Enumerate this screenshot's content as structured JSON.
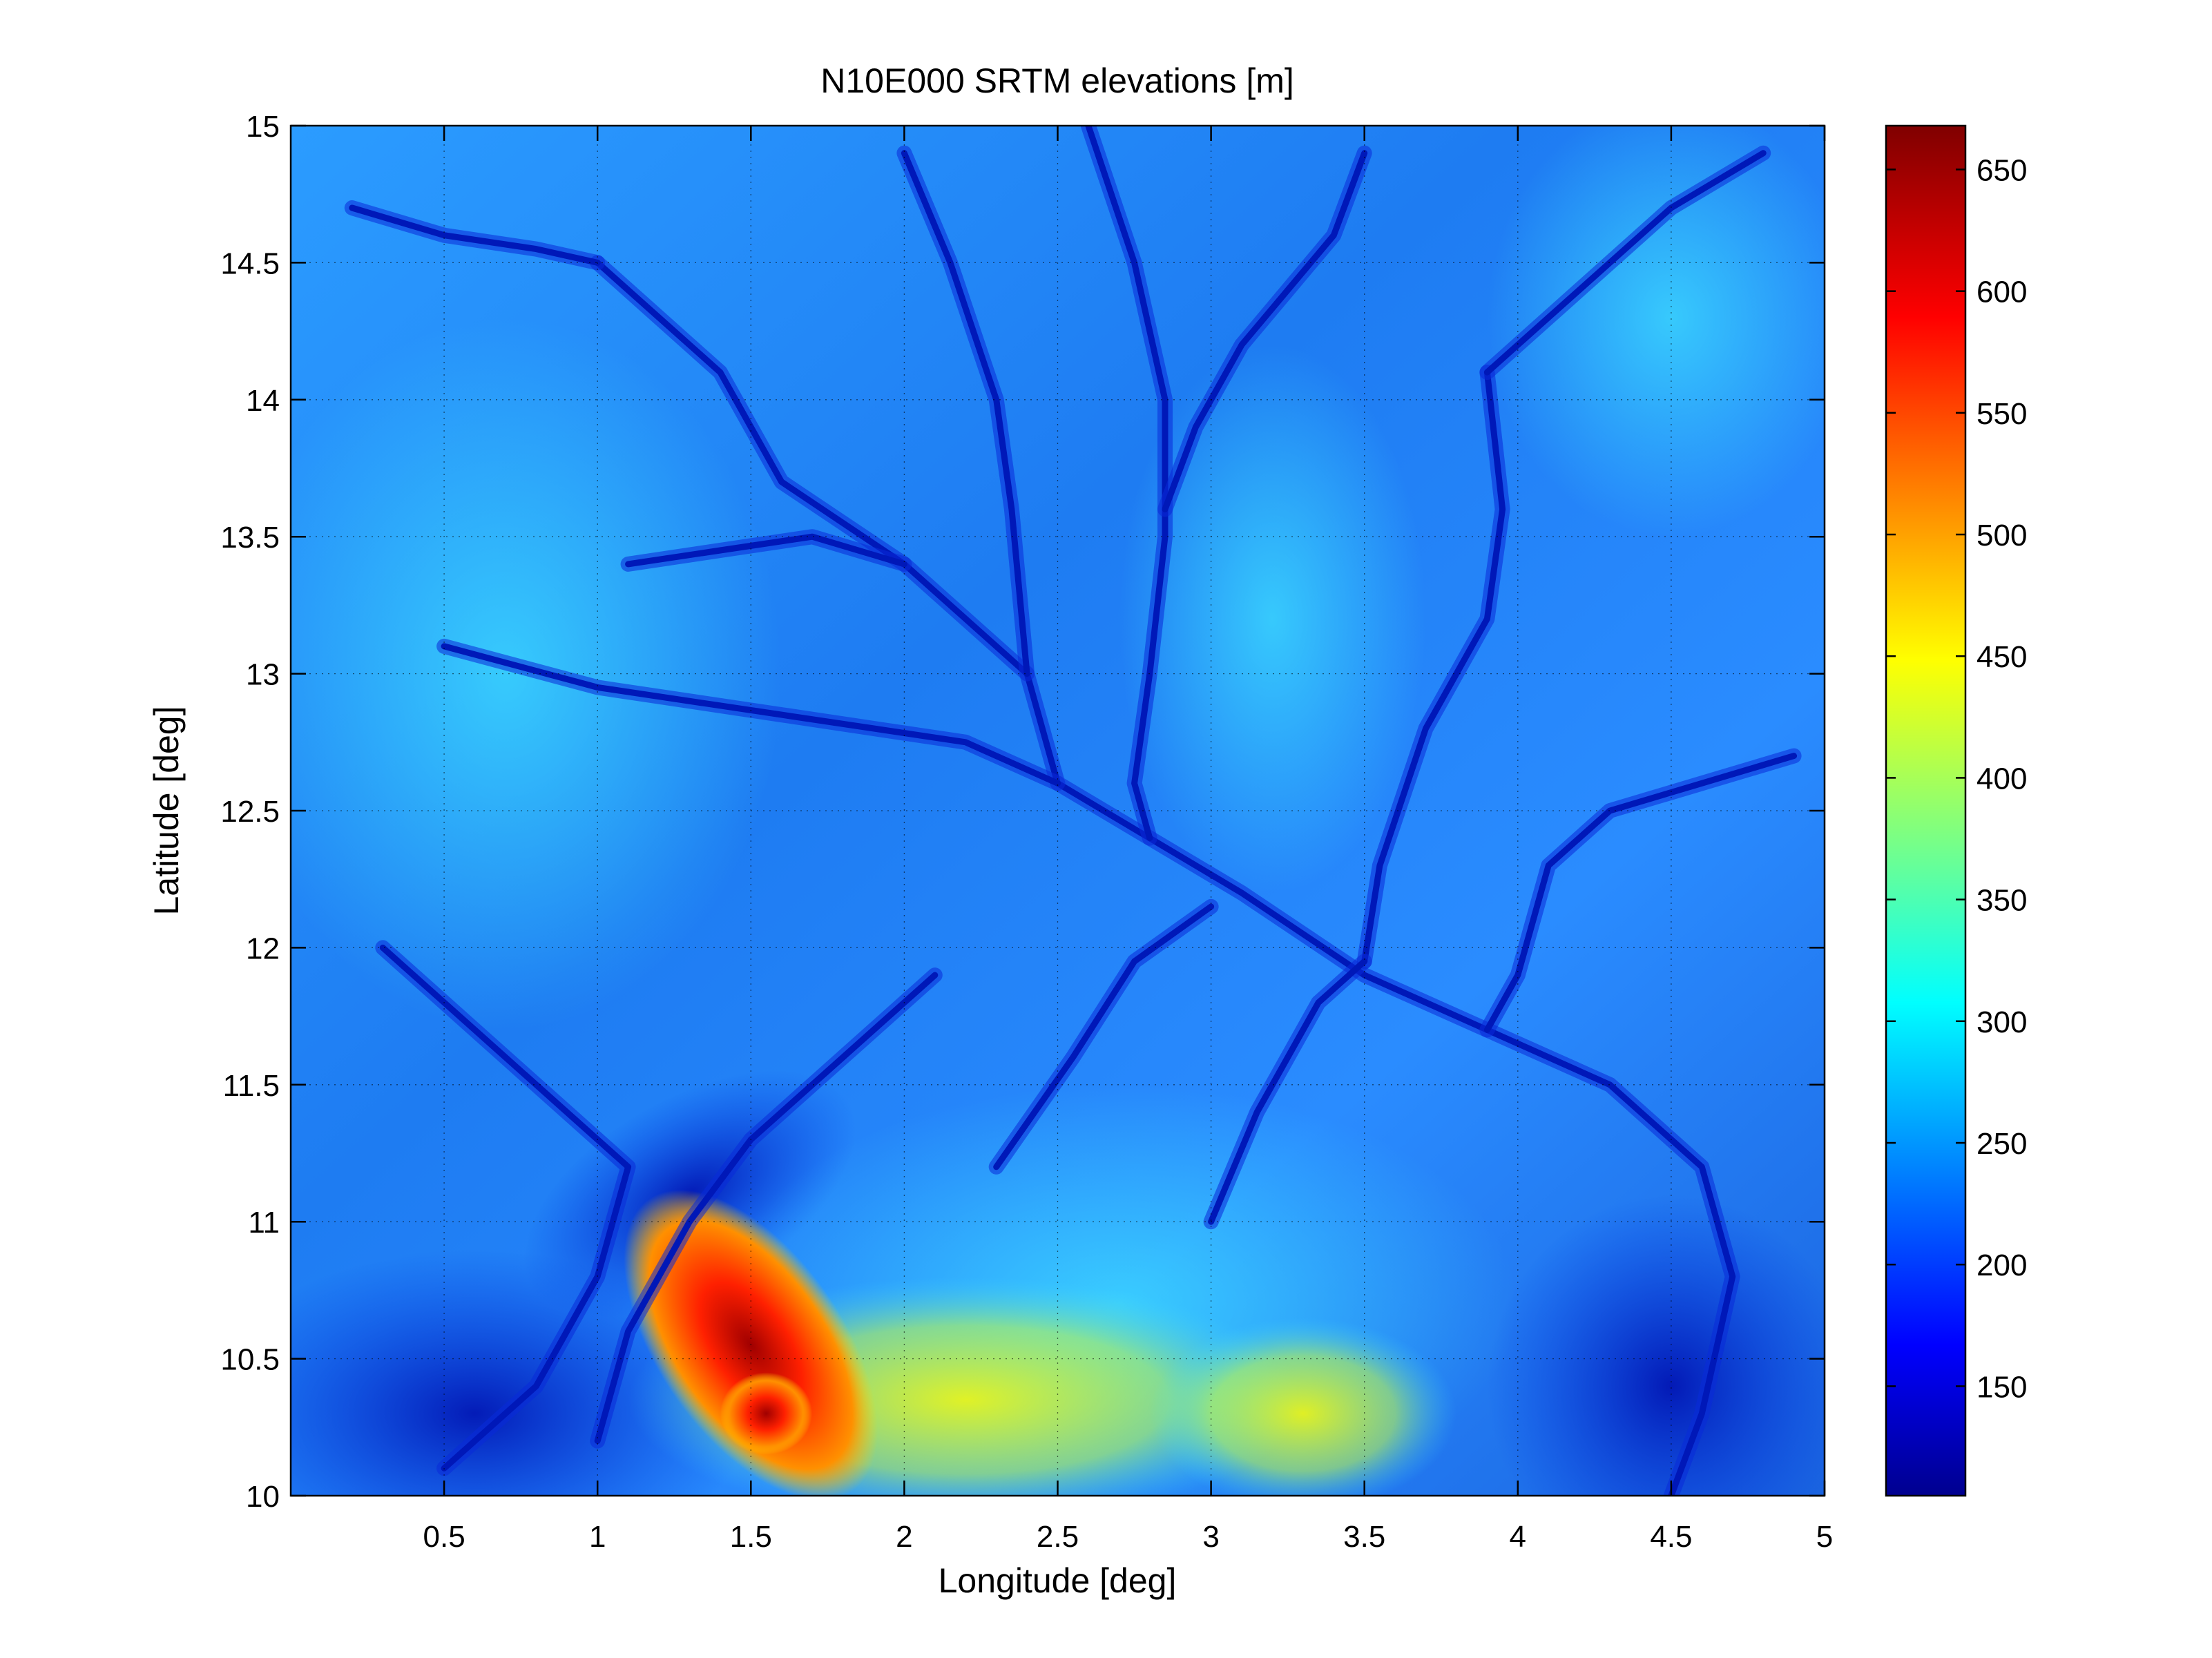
{
  "chart_data": {
    "type": "heatmap",
    "title": "N10E000 SRTM elevations [m]",
    "xlabel": "Longitude [deg]",
    "ylabel": "Latitude [deg]",
    "xlim": [
      0,
      5
    ],
    "ylim": [
      10,
      15
    ],
    "x_ticks": [
      "0.5",
      "1",
      "1.5",
      "2",
      "2.5",
      "3",
      "3.5",
      "4",
      "4.5",
      "5"
    ],
    "y_ticks": [
      "10",
      "10.5",
      "11",
      "11.5",
      "12",
      "12.5",
      "13",
      "13.5",
      "14",
      "14.5",
      "15"
    ],
    "grid": true,
    "colormap": "jet",
    "colorbar": {
      "position": "right",
      "range": [
        105,
        668
      ],
      "ticks": [
        "150",
        "200",
        "250",
        "300",
        "350",
        "400",
        "450",
        "500",
        "550",
        "600",
        "650"
      ]
    },
    "features": [
      {
        "type": "river",
        "points": [
          [
            1.0,
            14.5
          ],
          [
            1.4,
            14.1
          ],
          [
            1.6,
            13.7
          ],
          [
            2.0,
            13.4
          ],
          [
            2.4,
            13.0
          ],
          [
            2.5,
            12.6
          ],
          [
            2.8,
            12.4
          ],
          [
            3.1,
            12.2
          ],
          [
            3.5,
            11.9
          ],
          [
            3.9,
            11.7
          ],
          [
            4.3,
            11.5
          ],
          [
            4.6,
            11.2
          ],
          [
            4.7,
            10.8
          ],
          [
            4.6,
            10.3
          ],
          [
            4.5,
            10.0
          ]
        ]
      },
      {
        "type": "river",
        "points": [
          [
            2.6,
            15.0
          ],
          [
            2.75,
            14.5
          ],
          [
            2.85,
            14.0
          ],
          [
            2.85,
            13.5
          ],
          [
            2.8,
            13.0
          ],
          [
            2.75,
            12.6
          ],
          [
            2.8,
            12.4
          ]
        ]
      },
      {
        "type": "river",
        "points": [
          [
            3.5,
            14.9
          ],
          [
            3.4,
            14.6
          ],
          [
            3.1,
            14.2
          ],
          [
            2.95,
            13.9
          ],
          [
            2.85,
            13.6
          ]
        ]
      },
      {
        "type": "river",
        "points": [
          [
            4.9,
            12.7
          ],
          [
            4.6,
            12.6
          ],
          [
            4.3,
            12.5
          ],
          [
            4.1,
            12.3
          ],
          [
            4.0,
            11.9
          ],
          [
            3.9,
            11.7
          ]
        ]
      },
      {
        "type": "river",
        "points": [
          [
            3.9,
            14.1
          ],
          [
            3.95,
            13.6
          ],
          [
            3.9,
            13.2
          ],
          [
            3.7,
            12.8
          ],
          [
            3.55,
            12.3
          ],
          [
            3.5,
            11.95
          ]
        ]
      },
      {
        "type": "river",
        "points": [
          [
            0.2,
            14.7
          ],
          [
            0.5,
            14.6
          ],
          [
            0.8,
            14.55
          ],
          [
            1.0,
            14.5
          ]
        ]
      },
      {
        "type": "river",
        "points": [
          [
            0.3,
            12.0
          ],
          [
            0.6,
            11.7
          ],
          [
            0.9,
            11.4
          ],
          [
            1.1,
            11.2
          ],
          [
            1.0,
            10.8
          ],
          [
            0.8,
            10.4
          ],
          [
            0.5,
            10.1
          ]
        ]
      },
      {
        "type": "river",
        "points": [
          [
            2.1,
            11.9
          ],
          [
            1.8,
            11.6
          ],
          [
            1.5,
            11.3
          ],
          [
            1.3,
            11.0
          ],
          [
            1.1,
            10.6
          ],
          [
            1.0,
            10.2
          ]
        ]
      },
      {
        "type": "river",
        "points": [
          [
            4.8,
            14.9
          ],
          [
            4.5,
            14.7
          ],
          [
            4.2,
            14.4
          ],
          [
            3.9,
            14.1
          ]
        ]
      },
      {
        "type": "river",
        "points": [
          [
            1.1,
            13.4
          ],
          [
            1.4,
            13.45
          ],
          [
            1.7,
            13.5
          ],
          [
            2.0,
            13.4
          ]
        ]
      },
      {
        "type": "river",
        "points": [
          [
            0.5,
            13.1
          ],
          [
            1.0,
            12.95
          ],
          [
            1.6,
            12.85
          ],
          [
            2.2,
            12.75
          ],
          [
            2.5,
            12.6
          ]
        ]
      },
      {
        "type": "river",
        "points": [
          [
            2.3,
            11.2
          ],
          [
            2.55,
            11.6
          ],
          [
            2.75,
            11.95
          ],
          [
            3.0,
            12.15
          ]
        ]
      },
      {
        "type": "river",
        "points": [
          [
            2.0,
            14.9
          ],
          [
            2.15,
            14.5
          ],
          [
            2.3,
            14.0
          ],
          [
            2.35,
            13.6
          ],
          [
            2.4,
            13.0
          ]
        ]
      },
      {
        "type": "river",
        "points": [
          [
            3.0,
            11.0
          ],
          [
            3.15,
            11.4
          ],
          [
            3.35,
            11.8
          ],
          [
            3.5,
            11.95
          ]
        ]
      }
    ]
  }
}
